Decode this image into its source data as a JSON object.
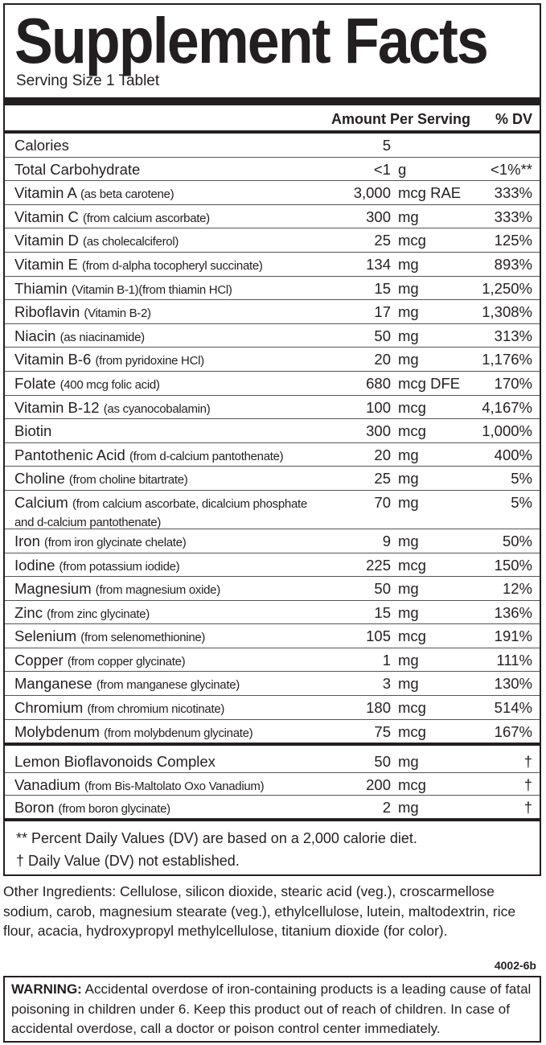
{
  "title": "Supplement Facts",
  "serving_size": "Serving Size 1 Tablet",
  "headers": {
    "amount": "Amount Per Serving",
    "dv": "% DV"
  },
  "rows": [
    {
      "name": "Calories",
      "detail": "",
      "qty": "5",
      "unit": "",
      "dv": ""
    },
    {
      "name": "Total Carbohydrate",
      "detail": "",
      "qty": "<1",
      "unit": "g",
      "dv": "<1%**"
    },
    {
      "name": "Vitamin A",
      "detail": "(as beta carotene)",
      "qty": "3,000",
      "unit": "mcg RAE",
      "dv": "333%"
    },
    {
      "name": "Vitamin C",
      "detail": "(from calcium ascorbate)",
      "qty": "300",
      "unit": "mg",
      "dv": "333%"
    },
    {
      "name": "Vitamin D",
      "detail": "(as cholecalciferol)",
      "qty": "25",
      "unit": "mcg",
      "dv": "125%"
    },
    {
      "name": "Vitamin E",
      "detail": "(from d-alpha tocopheryl succinate)",
      "qty": "134",
      "unit": "mg",
      "dv": "893%"
    },
    {
      "name": "Thiamin",
      "detail": "(Vitamin B-1)(from thiamin HCl)",
      "qty": "15",
      "unit": "mg",
      "dv": "1,250%"
    },
    {
      "name": "Riboflavin",
      "detail": "(Vitamin B-2)",
      "qty": "17",
      "unit": "mg",
      "dv": "1,308%"
    },
    {
      "name": "Niacin",
      "detail": "(as niacinamide)",
      "qty": "50",
      "unit": "mg",
      "dv": "313%"
    },
    {
      "name": "Vitamin B-6",
      "detail": "(from pyridoxine HCl)",
      "qty": "20",
      "unit": "mg",
      "dv": "1,176%"
    },
    {
      "name": "Folate",
      "detail": "(400 mcg folic acid)",
      "qty": "680",
      "unit": "mcg DFE",
      "dv": "170%"
    },
    {
      "name": "Vitamin B-12",
      "detail": "(as cyanocobalamin)",
      "qty": "100",
      "unit": "mcg",
      "dv": "4,167%"
    },
    {
      "name": "Biotin",
      "detail": "",
      "qty": "300",
      "unit": "mcg",
      "dv": "1,000%"
    },
    {
      "name": "Pantothenic Acid",
      "detail": "(from d-calcium pantothenate)",
      "qty": "20",
      "unit": "mg",
      "dv": "400%"
    },
    {
      "name": "Choline",
      "detail": "(from choline bitartrate)",
      "qty": "25",
      "unit": "mg",
      "dv": "5%"
    },
    {
      "name": "Calcium",
      "detail": "(from calcium ascorbate, dicalcium phosphate",
      "detail2": "and d-calcium pantothenate)",
      "qty": "70",
      "unit": "mg",
      "dv": "5%"
    },
    {
      "name": "Iron",
      "detail": "(from iron glycinate chelate)",
      "qty": "9",
      "unit": "mg",
      "dv": "50%"
    },
    {
      "name": "Iodine",
      "detail": "(from potassium iodide)",
      "qty": "225",
      "unit": "mcg",
      "dv": "150%"
    },
    {
      "name": "Magnesium",
      "detail": "(from magnesium oxide)",
      "qty": "50",
      "unit": "mg",
      "dv": "12%"
    },
    {
      "name": "Zinc",
      "detail": "(from zinc glycinate)",
      "qty": "15",
      "unit": "mg",
      "dv": "136%"
    },
    {
      "name": "Selenium",
      "detail": "(from selenomethionine)",
      "qty": "105",
      "unit": "mcg",
      "dv": "191%"
    },
    {
      "name": "Copper",
      "detail": "(from copper glycinate)",
      "qty": "1",
      "unit": "mg",
      "dv": "111%"
    },
    {
      "name": "Manganese",
      "detail": "(from manganese glycinate)",
      "qty": "3",
      "unit": "mg",
      "dv": "130%"
    },
    {
      "name": "Chromium",
      "detail": "(from chromium nicotinate)",
      "qty": "180",
      "unit": "mcg",
      "dv": "514%"
    },
    {
      "name": "Molybdenum",
      "detail": "(from molybdenum glycinate)",
      "qty": "75",
      "unit": "mcg",
      "dv": "167%"
    }
  ],
  "other_rows": [
    {
      "name": "Lemon Bioflavonoids Complex",
      "detail": "",
      "qty": "50",
      "unit": "mg",
      "dv": "†"
    },
    {
      "name": "Vanadium",
      "detail": "(from Bis-Maltolato Oxo Vanadium)",
      "qty": "200",
      "unit": "mcg",
      "dv": "†"
    },
    {
      "name": "Boron",
      "detail": "(from boron glycinate)",
      "qty": "2",
      "unit": "mg",
      "dv": "†"
    }
  ],
  "footnotes": [
    "** Percent Daily Values (DV) are based on a 2,000 calorie diet.",
    "† Daily Value (DV) not established."
  ],
  "other_ingredients": "Other Ingredients: Cellulose, silicon dioxide, stearic acid (veg.), croscarmellose sodium, carob, magnesium stearate (veg.), ethylcellulose, lutein, maltodextrin, rice flour, acacia, hydroxypropyl methylcellulose, titanium dioxide (for color).",
  "code": "4002-6b",
  "warning": {
    "label": "WARNING:",
    "text": " Accidental overdose of iron-containing products is a leading cause of fatal poisoning in children under 6. Keep this product out of reach of children. In case of accidental overdose, call a doctor or poison control center immediately."
  }
}
